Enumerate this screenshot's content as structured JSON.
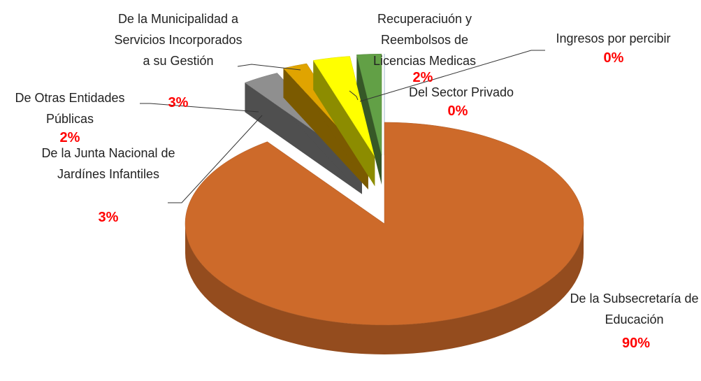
{
  "chart_data": {
    "type": "pie3d",
    "categories": [
      "De la Subsecretaría de Educación",
      "De la Junta Nacional de Jardínes Infantiles",
      "De Otras Entidades Públicas",
      "De la Municipalidad a Servicios Incorporados a su Gestión",
      "Recuperaciuón y Reembolsos de Licencias Medicas",
      "Del Sector Privado",
      "Ingresos por percibir"
    ],
    "values": [
      90,
      3,
      2,
      3,
      2,
      0,
      0
    ],
    "value_labels": [
      "90%",
      "3%",
      "2%",
      "3%",
      "2%",
      "0%",
      "0%"
    ],
    "colors": [
      "#cd6a2a",
      "#8f8f8f",
      "#e0a400",
      "#ffff00",
      "#62a046",
      "#9dc3e6",
      "#bdd7ee"
    ]
  }
}
